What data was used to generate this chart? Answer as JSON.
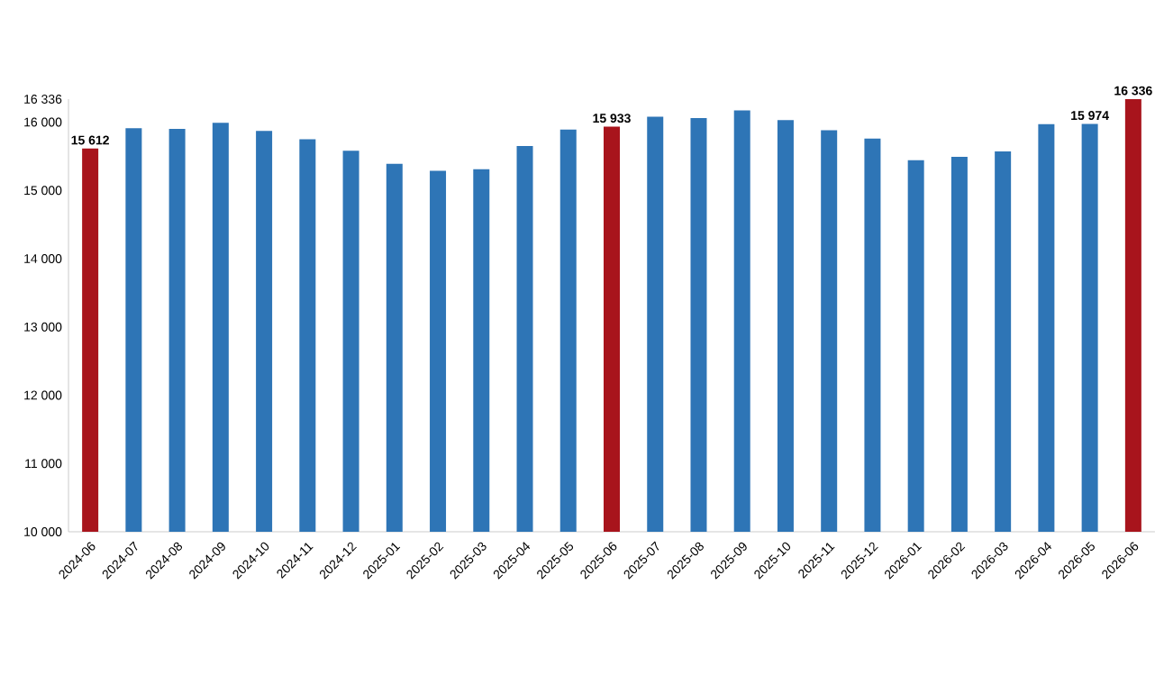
{
  "chart_data": {
    "type": "bar",
    "categories": [
      "2024-06",
      "2024-07",
      "2024-08",
      "2024-09",
      "2024-10",
      "2024-11",
      "2024-12",
      "2025-01",
      "2025-02",
      "2025-03",
      "2025-04",
      "2025-05",
      "2025-06",
      "2025-07",
      "2025-08",
      "2025-09",
      "2025-10",
      "2025-11",
      "2025-12",
      "2026-01",
      "2026-02",
      "2026-03",
      "2026-04",
      "2026-05",
      "2026-06"
    ],
    "values": [
      15612,
      15910,
      15900,
      15990,
      15870,
      15750,
      15580,
      15390,
      15285,
      15310,
      15650,
      15890,
      15933,
      16080,
      16060,
      16170,
      16030,
      15880,
      15760,
      15440,
      15490,
      15570,
      15970,
      15974,
      16336
    ],
    "colors": [
      "#a8141c",
      "#2e75b6",
      "#2e75b6",
      "#2e75b6",
      "#2e75b6",
      "#2e75b6",
      "#2e75b6",
      "#2e75b6",
      "#2e75b6",
      "#2e75b6",
      "#2e75b6",
      "#2e75b6",
      "#a8141c",
      "#2e75b6",
      "#2e75b6",
      "#2e75b6",
      "#2e75b6",
      "#2e75b6",
      "#2e75b6",
      "#2e75b6",
      "#2e75b6",
      "#2e75b6",
      "#2e75b6",
      "#2e75b6",
      "#a8141c"
    ],
    "value_labels": [
      "15 612",
      null,
      null,
      null,
      null,
      null,
      null,
      null,
      null,
      null,
      null,
      null,
      "15 933",
      null,
      null,
      null,
      null,
      null,
      null,
      null,
      null,
      null,
      null,
      "15 974",
      "16 336"
    ],
    "ylim": [
      10000,
      16336
    ],
    "yticks": [
      {
        "value": 10000,
        "label": "10 000"
      },
      {
        "value": 11000,
        "label": "11 000"
      },
      {
        "value": 12000,
        "label": "12 000"
      },
      {
        "value": 13000,
        "label": "13 000"
      },
      {
        "value": 14000,
        "label": "14 000"
      },
      {
        "value": 15000,
        "label": "15 000"
      },
      {
        "value": 16000,
        "label": "16 000"
      },
      {
        "value": 16336,
        "label": "16 336"
      }
    ],
    "grid": false
  }
}
